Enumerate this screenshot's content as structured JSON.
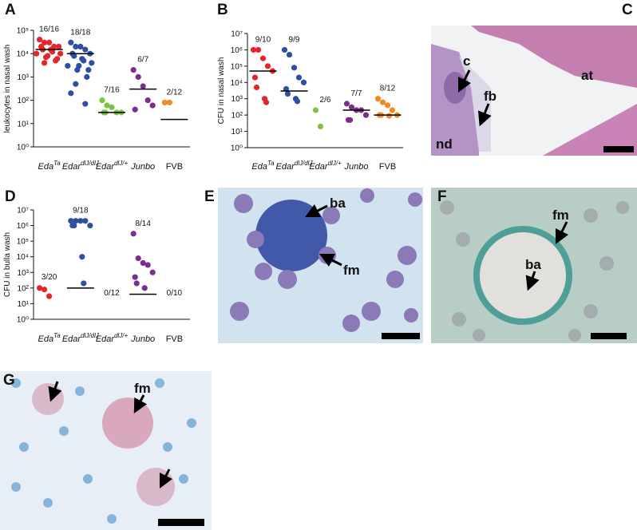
{
  "chart_data": [
    {
      "type": "dotplot",
      "panel": "A",
      "ylabel": "leukocytes in nasal wash",
      "log_scale": true,
      "categories": [
        "Eda",
        "Edar",
        "Edar",
        "Junbo",
        "FVB"
      ],
      "category_superscripts": [
        "Ta",
        "dlJ/dlJ",
        "dlJ/+",
        null,
        null
      ],
      "category_italic": [
        true,
        true,
        true,
        true,
        false
      ],
      "colors": [
        "#e4262c",
        "#2e4fa3",
        "#7dc242",
        "#7b2e8e",
        "#f08a24"
      ],
      "fractions": [
        "16/16",
        "18/18",
        "7/16",
        "6/7",
        "2/12"
      ],
      "values": [
        [
          40000,
          30000,
          30000,
          20000,
          20000,
          20000,
          15000,
          15000,
          12000,
          10000,
          10000,
          8000,
          7000,
          6000,
          5000,
          4000
        ],
        [
          30000,
          20000,
          20000,
          15000,
          10000,
          10000,
          8000,
          6000,
          5000,
          4000,
          3000,
          3000,
          2000,
          2000,
          1000,
          500,
          200,
          70
        ],
        [
          100,
          60,
          50,
          30,
          30,
          30,
          30
        ],
        [
          2000,
          1000,
          400,
          100,
          60,
          40
        ],
        [
          80,
          80
        ]
      ],
      "medians": [
        15000,
        10000,
        30,
        300,
        15
      ],
      "ylim": [
        1,
        100000
      ],
      "yticks": [
        {
          "value": 1,
          "label": "10⁰"
        },
        {
          "value": 10,
          "label": "10¹"
        },
        {
          "value": 100,
          "label": "10²"
        },
        {
          "value": 1000,
          "label": "10³"
        },
        {
          "value": 10000,
          "label": "10⁴"
        },
        {
          "value": 100000,
          "label": "10⁵"
        }
      ]
    },
    {
      "type": "dotplot",
      "panel": "B",
      "ylabel": "CFU in nasal wash",
      "log_scale": true,
      "categories": [
        "Eda",
        "Edar",
        "Edar",
        "Junbo",
        "FVB"
      ],
      "category_superscripts": [
        "Ta",
        "dlJ/dlJ",
        "dlJ/+",
        null,
        null
      ],
      "category_italic": [
        true,
        true,
        true,
        true,
        false
      ],
      "colors": [
        "#e4262c",
        "#2e4fa3",
        "#7dc242",
        "#7b2e8e",
        "#f08a24"
      ],
      "fractions": [
        "9/10",
        "9/9",
        "2/6",
        "7/7",
        "8/12"
      ],
      "values": [
        [
          1000000,
          1000000,
          300000,
          100000,
          50000,
          20000,
          5000,
          1000,
          600
        ],
        [
          1000000,
          500000,
          80000,
          20000,
          10000,
          4000,
          2000,
          1000,
          700
        ],
        [
          200,
          20
        ],
        [
          500,
          300,
          200,
          200,
          100,
          50,
          50
        ],
        [
          1000,
          600,
          400,
          200,
          100,
          100,
          100,
          90
        ]
      ],
      "medians": [
        50000,
        3000,
        null,
        200,
        100
      ],
      "ylim": [
        1,
        10000000
      ],
      "yticks": [
        {
          "value": 1,
          "label": "10⁰"
        },
        {
          "value": 10,
          "label": "10¹"
        },
        {
          "value": 100,
          "label": "10²"
        },
        {
          "value": 1000,
          "label": "10³"
        },
        {
          "value": 10000,
          "label": "10⁴"
        },
        {
          "value": 100000,
          "label": "10⁵"
        },
        {
          "value": 1000000,
          "label": "10⁶"
        },
        {
          "value": 10000000,
          "label": "10⁷"
        }
      ]
    },
    {
      "type": "dotplot",
      "panel": "D",
      "ylabel": "CFU in bulla wash",
      "log_scale": true,
      "categories": [
        "Eda",
        "Edar",
        "Edar",
        "Junbo",
        "FVB"
      ],
      "category_superscripts": [
        "Ta",
        "dlJ/dlJ",
        "dlJ/+",
        null,
        null
      ],
      "category_italic": [
        true,
        true,
        true,
        true,
        false
      ],
      "colors": [
        "#e4262c",
        "#2e4fa3",
        "#7dc242",
        "#7b2e8e",
        "#f08a24"
      ],
      "fractions": [
        "3/20",
        "9/18",
        "0/12",
        "8/14",
        "0/10"
      ],
      "values": [
        [
          100,
          80,
          30
        ],
        [
          2000000,
          2000000,
          2000000,
          2000000,
          1000000,
          1000000,
          1000000,
          10000,
          200
        ],
        [],
        [
          300000,
          8000,
          4000,
          3000,
          1000,
          500,
          200,
          100
        ],
        []
      ],
      "medians": [
        null,
        100,
        null,
        40,
        null
      ],
      "ylim": [
        1,
        10000000
      ],
      "yticks": [
        {
          "value": 1,
          "label": "10⁰"
        },
        {
          "value": 10,
          "label": "10¹"
        },
        {
          "value": 100,
          "label": "10²"
        },
        {
          "value": 1000,
          "label": "10³"
        },
        {
          "value": 10000,
          "label": "10⁴"
        },
        {
          "value": 100000,
          "label": "10⁵"
        },
        {
          "value": 1000000,
          "label": "10⁶"
        },
        {
          "value": 10000000,
          "label": "10⁷"
        }
      ]
    }
  ],
  "images": [
    {
      "panel": "C",
      "annotations": [
        "c",
        "fb",
        "at",
        "nd"
      ]
    },
    {
      "panel": "E",
      "annotations": [
        "ba",
        "fm"
      ]
    },
    {
      "panel": "F",
      "annotations": [
        "fm",
        "ba"
      ]
    },
    {
      "panel": "G",
      "annotations": [
        "fm"
      ]
    }
  ]
}
